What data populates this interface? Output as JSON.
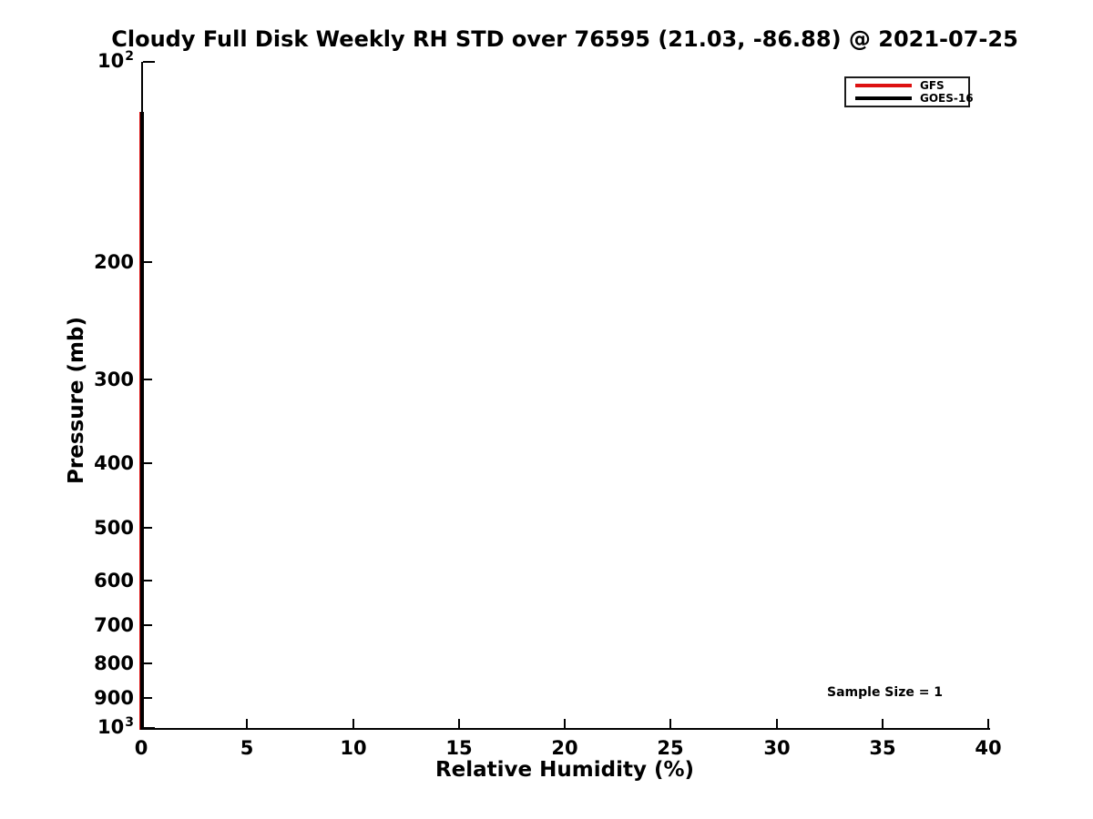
{
  "title": "Cloudy Full Disk Weekly RH STD over 76595 (21.03, -86.88) @ 2021-07-25",
  "annotation": {
    "text": "Sample Size = 1"
  },
  "legend": {
    "items": [
      {
        "label": "GFS",
        "color": "#dd1111"
      },
      {
        "label": "GOES-16",
        "color": "#000000"
      }
    ]
  },
  "chart_data": {
    "type": "line",
    "title": "Cloudy Full Disk Weekly RH STD over 76595 (21.03, -86.88) @ 2021-07-25",
    "xlabel": "Relative Humidity (%)",
    "ylabel": "Pressure (mb)",
    "xlim": [
      0,
      40
    ],
    "x_ticks": [
      0,
      5,
      10,
      15,
      20,
      25,
      30,
      35,
      40
    ],
    "y_scale": "log10",
    "y_axis_orientation": "pressure increases downward",
    "ylim_mb": [
      100,
      1000
    ],
    "y_major_ticks": [
      {
        "label_base": "10",
        "label_exp": "2",
        "value_mb": 100
      },
      {
        "label_base": "10",
        "label_exp": "3",
        "value_mb": 1000
      }
    ],
    "y_minor_tick_labels_mb": [
      200,
      300,
      400,
      500,
      600,
      700,
      800,
      900
    ],
    "grid": false,
    "legend_position": "upper right",
    "series": [
      {
        "name": "GFS",
        "color": "#dd1111",
        "x_constant": 0,
        "pressure_top_mb": 119,
        "pressure_bottom_mb": 1000,
        "note": "vertical line at RH STD = 0, almost fully hidden under GOES-16 line"
      },
      {
        "name": "GOES-16",
        "color": "#000000",
        "x_constant": 0,
        "pressure_top_mb": 119,
        "pressure_bottom_mb": 1000,
        "note": "vertical line at RH STD = 0 drawn over the y-axis"
      }
    ],
    "annotation": {
      "text": "Sample Size = 1",
      "x_approx": 32.5,
      "pressure_mb_approx": 950
    }
  }
}
